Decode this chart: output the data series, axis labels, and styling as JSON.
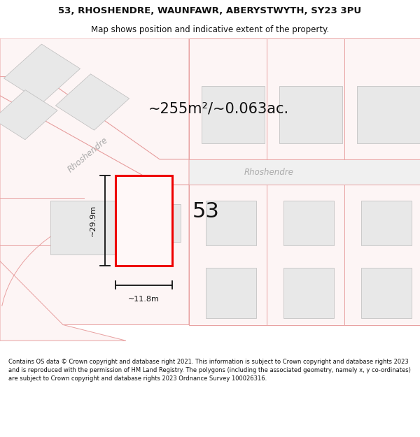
{
  "title_line1": "53, RHOSHENDRE, WAUNFAWR, ABERYSTWYTH, SY23 3PU",
  "title_line2": "Map shows position and indicative extent of the property.",
  "area_text": "~255m²/~0.063ac.",
  "plot_number": "53",
  "dim_width": "~11.8m",
  "dim_height": "~29.9m",
  "road_label1": "Rhoshendre",
  "road_label2": "Rhoshendre",
  "footer_text": "Contains OS data © Crown copyright and database right 2021. This information is subject to Crown copyright and database rights 2023 and is reproduced with the permission of HM Land Registry. The polygons (including the associated geometry, namely x, y co-ordinates) are subject to Crown copyright and database rights 2023 Ordnance Survey 100026316.",
  "bg_color": "#ffffff",
  "map_bg": "#ffffff",
  "plot_fill": "#ffffff",
  "plot_edge": "#ee0000",
  "building_fill": "#e8e8e8",
  "building_edge": "#bbbbbb",
  "parcel_edge": "#e8a0a0",
  "road_fill": "#f0f0f0",
  "road_edge": "#cccccc",
  "dim_color": "#111111",
  "text_color": "#111111",
  "road_text_color": "#aaaaaa",
  "title_fontsize": 9.5,
  "subtitle_fontsize": 8.5,
  "area_fontsize": 15,
  "plot_num_fontsize": 22,
  "road_fontsize": 8.5,
  "dim_fontsize": 8,
  "footer_fontsize": 6.0
}
